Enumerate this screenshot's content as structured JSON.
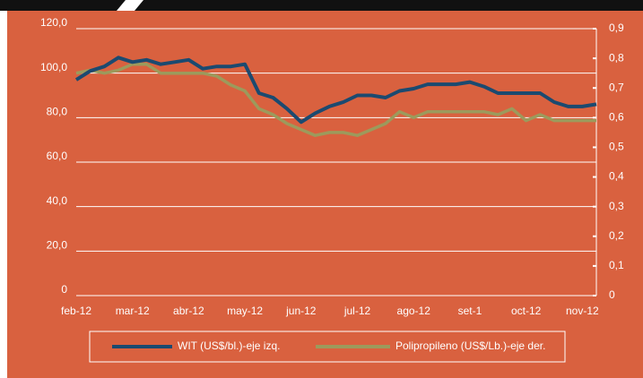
{
  "chart_data": {
    "type": "line",
    "categories": [
      "feb-12",
      null,
      null,
      null,
      "mar-12",
      null,
      null,
      null,
      "abr-12",
      null,
      null,
      null,
      "may-12",
      null,
      null,
      null,
      "jun-12",
      null,
      null,
      null,
      "jul-12",
      null,
      null,
      null,
      "ago-12",
      null,
      null,
      null,
      "set-1",
      null,
      null,
      null,
      "oct-12",
      null,
      null,
      null,
      "nov-12",
      null
    ],
    "series": [
      {
        "name": "WIT (US$/bl.)-eje izq.",
        "color": "#1b4a70",
        "axis": "y",
        "values": [
          97,
          101,
          103,
          107,
          105,
          106,
          104,
          105,
          106,
          102,
          103,
          103,
          104,
          91,
          89,
          84,
          78,
          82,
          85,
          87,
          90,
          90,
          89,
          92,
          93,
          95,
          95,
          95,
          96,
          94,
          91,
          91,
          91,
          91,
          87,
          85,
          85,
          86
        ]
      },
      {
        "name": "Polipropileno (US$/Lb.)-eje der.",
        "color": "#9c9a5c",
        "axis": "y2",
        "values": [
          0.75,
          0.76,
          0.75,
          0.76,
          0.78,
          0.78,
          0.75,
          0.75,
          0.75,
          0.75,
          0.74,
          0.71,
          0.69,
          0.63,
          0.61,
          0.58,
          0.56,
          0.54,
          0.55,
          0.55,
          0.54,
          0.56,
          0.58,
          0.62,
          0.6,
          0.62,
          0.62,
          0.62,
          0.62,
          0.62,
          0.61,
          0.63,
          0.59,
          0.61,
          0.59,
          0.59,
          0.59,
          0.59
        ]
      }
    ],
    "ylim": [
      0,
      120
    ],
    "yticks": [
      0,
      {
        "value": 20,
        "label": "20,0"
      },
      {
        "value": 40,
        "label": "40,0"
      },
      {
        "value": 60,
        "label": "60,0"
      },
      {
        "value": 80,
        "label": "80,0"
      },
      {
        "value": 100,
        "label": "100,0"
      },
      {
        "value": 120,
        "label": "120,0"
      }
    ],
    "y2lim": [
      0,
      0.9
    ],
    "y2ticks": [
      0,
      {
        "value": 0.1,
        "label": "0,1"
      },
      {
        "value": 0.2,
        "label": "0,2"
      },
      {
        "value": 0.3,
        "label": "0,3"
      },
      {
        "value": 0.4,
        "label": "0,4"
      },
      {
        "value": 0.5,
        "label": "0,5"
      },
      {
        "value": 0.6,
        "label": "0,6"
      },
      {
        "value": 0.7,
        "label": "0,7"
      },
      {
        "value": 0.8,
        "label": "0,8"
      },
      {
        "value": 0.9,
        "label": "0,9"
      }
    ],
    "grid": true,
    "legend": "bottom"
  }
}
